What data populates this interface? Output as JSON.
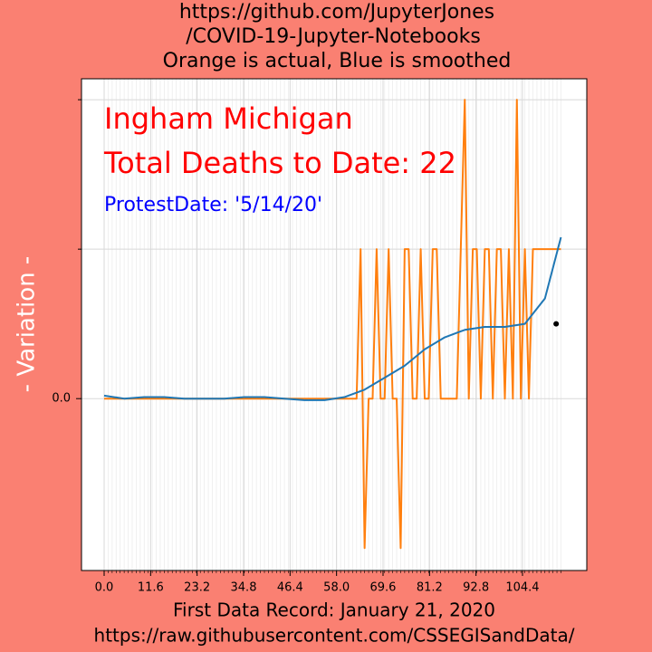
{
  "chart_data": {
    "type": "line",
    "title": [
      "https://github.com/JupyterJones",
      "/COVID-19-Jupyter-Notebooks",
      "Orange is actual, Blue is smoothed"
    ],
    "annotations": [
      {
        "text": "Ingham Michigan",
        "color": "#ff0000"
      },
      {
        "text": "Total Deaths to Date: 22",
        "color": "#ff0000"
      },
      {
        "text": "ProtestDate:  '5/14/20'",
        "color": "#0000ff"
      }
    ],
    "y_label": "- Variation -",
    "x_label": [
      "First Data Record: January 21, 2020",
      "https://raw.githubusercontent.com/CSSEGISandData/"
    ],
    "xlim": [
      -5.65,
      120.45
    ],
    "ylim": [
      -1.15,
      2.14
    ],
    "xticks": [
      {
        "value": 0,
        "label": "0.0"
      },
      11.6,
      23.2,
      34.8,
      46.4,
      {
        "value": 58,
        "label": "58.0"
      },
      69.6,
      81.2,
      92.8,
      104.4
    ],
    "yticks": [
      {
        "value": 0,
        "label": "0.0"
      }
    ],
    "minor_yticks": [
      1,
      2
    ],
    "grid": true,
    "series": [
      {
        "color": "#ff7f0e",
        "x": [
          0,
          1,
          2,
          3,
          4,
          5,
          6,
          7,
          8,
          9,
          10,
          11,
          12,
          13,
          14,
          15,
          16,
          17,
          18,
          19,
          20,
          21,
          22,
          23,
          24,
          25,
          26,
          27,
          28,
          29,
          30,
          31,
          32,
          33,
          34,
          35,
          36,
          37,
          38,
          39,
          40,
          41,
          42,
          43,
          44,
          45,
          46,
          47,
          48,
          49,
          50,
          51,
          52,
          53,
          54,
          55,
          56,
          57,
          58,
          59,
          60,
          61,
          62,
          63,
          64,
          65,
          66,
          67,
          68,
          69,
          70,
          71,
          72,
          73,
          74,
          75,
          76,
          77,
          78,
          79,
          80,
          81,
          82,
          83,
          84,
          85,
          86,
          87,
          88,
          89,
          90,
          91,
          92,
          93,
          94,
          95,
          96,
          97,
          98,
          99,
          100,
          101,
          102,
          103,
          104,
          105,
          106,
          107,
          108,
          109,
          110,
          111,
          112,
          113,
          114
        ],
        "values": [
          0,
          0,
          0,
          0,
          0,
          0,
          0,
          0,
          0,
          0,
          0,
          0,
          0,
          0,
          0,
          0,
          0,
          0,
          0,
          0,
          0,
          0,
          0,
          0,
          0,
          0,
          0,
          0,
          0,
          0,
          0,
          0,
          0,
          0,
          0,
          0,
          0,
          0,
          0,
          0,
          0,
          0,
          0,
          0,
          0,
          0,
          0,
          0,
          0,
          0,
          0,
          0,
          0,
          0,
          0,
          0,
          0,
          0,
          0,
          0,
          0,
          0,
          0,
          0,
          1,
          -1,
          0,
          0,
          1,
          0,
          0,
          1,
          0,
          0,
          -1,
          1,
          1,
          0,
          0,
          1,
          0,
          0,
          1,
          1,
          0,
          0,
          0,
          0,
          0,
          1,
          2,
          0,
          1,
          1,
          0,
          1,
          1,
          0,
          1,
          1,
          0,
          1,
          0,
          2,
          0,
          1,
          0,
          1,
          1,
          1,
          1,
          1,
          1,
          1,
          1
        ]
      },
      {
        "color": "#1f77b4",
        "x": [
          0,
          5,
          10,
          15,
          20,
          25,
          30,
          35,
          40,
          45,
          50,
          55,
          60,
          65,
          70,
          75,
          80,
          85,
          90,
          95,
          100,
          105,
          110,
          114
        ],
        "values": [
          0.02,
          0.0,
          0.01,
          0.01,
          0.0,
          0.0,
          0.0,
          0.01,
          0.01,
          0.0,
          -0.01,
          -0.01,
          0.01,
          0.06,
          0.14,
          0.22,
          0.33,
          0.41,
          0.46,
          0.48,
          0.48,
          0.5,
          0.67,
          1.08
        ]
      }
    ],
    "point": {
      "x": 112.8,
      "y": 0.5,
      "color": "#000000"
    }
  }
}
